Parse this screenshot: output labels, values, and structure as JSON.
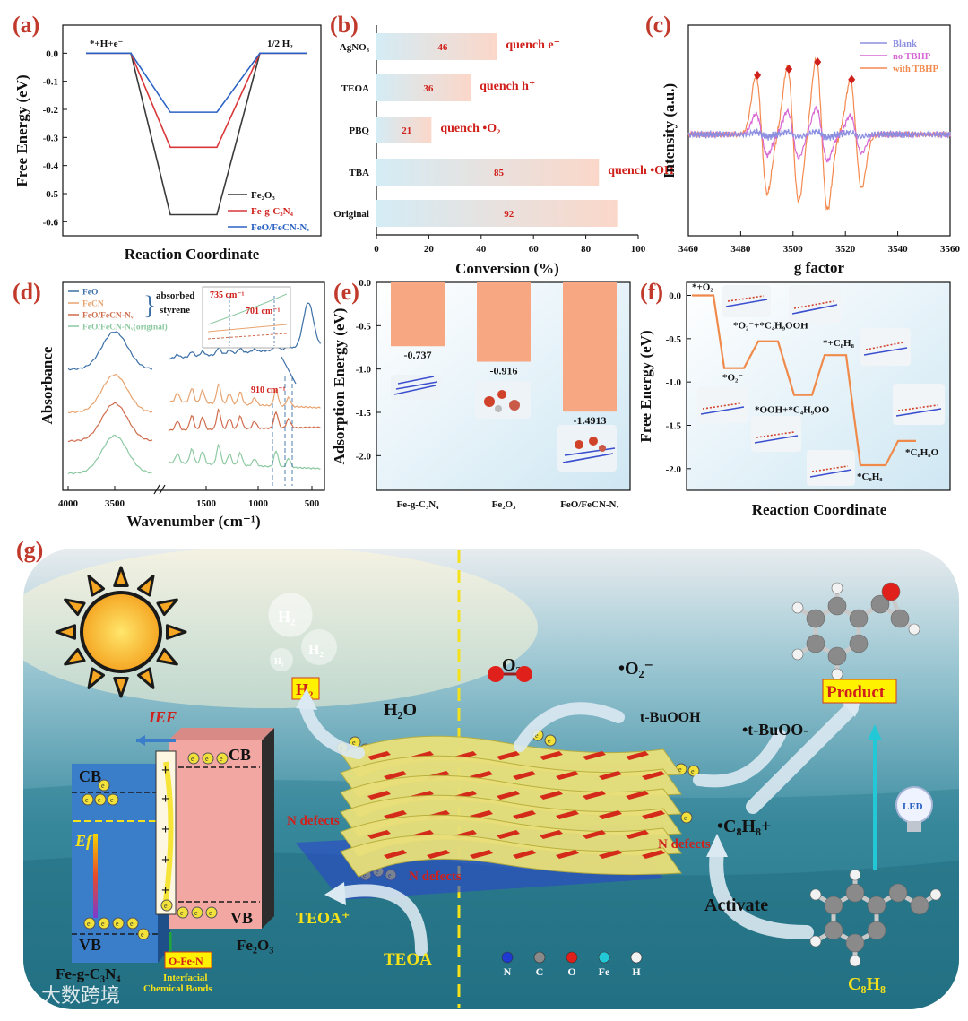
{
  "panels": {
    "a": {
      "label": "(a)"
    },
    "b": {
      "label": "(b)"
    },
    "c": {
      "label": "(c)"
    },
    "d": {
      "label": "(d)"
    },
    "e": {
      "label": "(e)"
    },
    "f": {
      "label": "(f)"
    },
    "g": {
      "label": "(g)"
    }
  },
  "chart_data": [
    {
      "id": "a",
      "type": "line",
      "ylabel": "Free Energy (eV)",
      "xlabel": "Reaction Coordinate",
      "ylim": [
        -0.65,
        0.1
      ],
      "yticks": [
        "0.0",
        "-0.1",
        "-0.2",
        "-0.3",
        "-0.4",
        "-0.5",
        "-0.6"
      ],
      "start_label": "*+H+e⁻",
      "end_label": "1/2 H₂",
      "series": [
        {
          "name": "Fe₂O₃",
          "color": "#3a3a3a",
          "values": [
            0,
            -0.575,
            0
          ]
        },
        {
          "name": "Fe-g-C₃N₄",
          "color": "#d9373a",
          "values": [
            0,
            -0.335,
            0
          ]
        },
        {
          "name": "FeO/FeCN-Nᵥ",
          "color": "#2a62c4",
          "values": [
            0,
            -0.21,
            0
          ]
        }
      ]
    },
    {
      "id": "b",
      "type": "bar",
      "xlabel": "Conversion (%)",
      "xlim": [
        0,
        100
      ],
      "xticks": [
        "0",
        "20",
        "40",
        "60",
        "80",
        "100"
      ],
      "categories": [
        "AgNO₃",
        "TEOA",
        "PBQ",
        "TBA",
        "Original"
      ],
      "values": [
        46,
        36,
        21,
        85,
        92
      ],
      "value_labels": [
        "46",
        "36",
        "21",
        "85",
        "92"
      ],
      "annotations": [
        "quench e⁻",
        "quench h⁺",
        "quench •O₂⁻",
        "quench •OH",
        ""
      ]
    },
    {
      "id": "c",
      "type": "line",
      "ylabel": "Intensity (a.u.)",
      "xlabel": "g factor",
      "xlim": [
        3460,
        3560
      ],
      "xticks": [
        "3460",
        "3480",
        "3500",
        "3520",
        "3540",
        "3560"
      ],
      "series": [
        {
          "name": "Blank",
          "color": "#8c8fe0"
        },
        {
          "name": "no TBHP",
          "color": "#d768d3"
        },
        {
          "name": "with TBHP",
          "color": "#f3894e"
        }
      ],
      "peaks_g": [
        3488,
        3500,
        3511,
        3524
      ],
      "peak_amplitudes": [
        0.55,
        0.62,
        0.7,
        0.5
      ],
      "marker_color": "#d0201b"
    },
    {
      "id": "d",
      "type": "line",
      "ylabel": "Absorbance",
      "xlabel": "Wavenumber (cm⁻¹)",
      "xticks": [
        "4000",
        "3500",
        "1500",
        "1000",
        "500"
      ],
      "legend": [
        "FeO",
        "FeCN",
        "FeO/FeCN-Nᵥ",
        "FeO/FeCN-Nᵥ(original)"
      ],
      "legend_colors": [
        "#3b6fa6",
        "#e7a36f",
        "#cf6c4c",
        "#8cc9a1"
      ],
      "brace_label_1": "absorbed",
      "brace_label_2": "styrene",
      "inset_labels": [
        "735 cm⁻¹",
        "701 cm⁻¹"
      ],
      "marker_label": "910 cm⁻¹"
    },
    {
      "id": "e",
      "type": "bar",
      "ylabel": "Adsorption Energy (eV)",
      "ylim": [
        -2.4,
        0
      ],
      "yticks": [
        "0.0",
        "-0.5",
        "-1.0",
        "-1.5",
        "-2.0"
      ],
      "categories": [
        "Fe-g-C₃N₄",
        "Fe₂O₃",
        "FeO/FeCN-Nᵥ"
      ],
      "values": [
        -0.737,
        -0.916,
        -1.4913
      ],
      "value_labels": [
        "-0.737",
        "-0.916",
        "-1.4913"
      ],
      "bar_color": "#f7a883"
    },
    {
      "id": "f",
      "type": "line",
      "ylabel": "Free Energy (eV)",
      "xlabel": "Reaction Coordinate",
      "ylim": [
        -2.25,
        0.15
      ],
      "yticks": [
        "0.0",
        "-0.5",
        "-1.0",
        "-1.5",
        "-2.0"
      ],
      "steps": [
        {
          "label": "*+O₂",
          "value": 0
        },
        {
          "label": "*O₂⁻",
          "value": -0.84
        },
        {
          "label": "*O₂⁻+*C₄H₉OOH",
          "value": -0.53
        },
        {
          "label": "*OOH+*C₄H₉OO",
          "value": -1.15
        },
        {
          "label": "*+C₈H₈",
          "value": -0.69
        },
        {
          "label": "*C₈H₈",
          "value": -1.96
        },
        {
          "label": "*C₈H₈O",
          "value": -1.68
        }
      ],
      "line_color": "#f08a4b"
    }
  ],
  "scheme": {
    "cb_left": "CB",
    "vb_left": "VB",
    "cb_right": "CB",
    "vb_right": "VB",
    "left_material": "Fe-g-C₃N₄",
    "right_material": "Fe₂O₃",
    "ief": "IEF",
    "ef": "Ef",
    "bond_label": "O-Fe-N",
    "bond_caption_1": "Interfacial",
    "bond_caption_2": "Chemical Bonds",
    "h2_main": "H₂",
    "h2_bubble_1": "H₂",
    "h2_bubble_2": "H₂",
    "h2_bubble_3": "H₂",
    "h2o": "H₂O",
    "o2": "O₂",
    "o2_radical": "•O₂⁻",
    "tbuooh": "t-BuOOH",
    "tbuoo_radical": "•t-BuOO-",
    "styrene_radical": "•C₈H₈+",
    "n_defects_1": "N defects",
    "n_defects_2": "N defects",
    "n_defects_3": "N defects",
    "teoa_plus": "TEOA⁺",
    "teoa": "TEOA",
    "activate": "Activate",
    "product": "Product",
    "led": "LED",
    "c8h8": "C₈H₈",
    "atoms": [
      "N",
      "C",
      "O",
      "Fe",
      "H"
    ],
    "atom_colors": [
      "#1f3ad1",
      "#8a8a8a",
      "#e0201b",
      "#22c8d6",
      "#f2f2f2"
    ],
    "watermark": "大数跨境"
  }
}
